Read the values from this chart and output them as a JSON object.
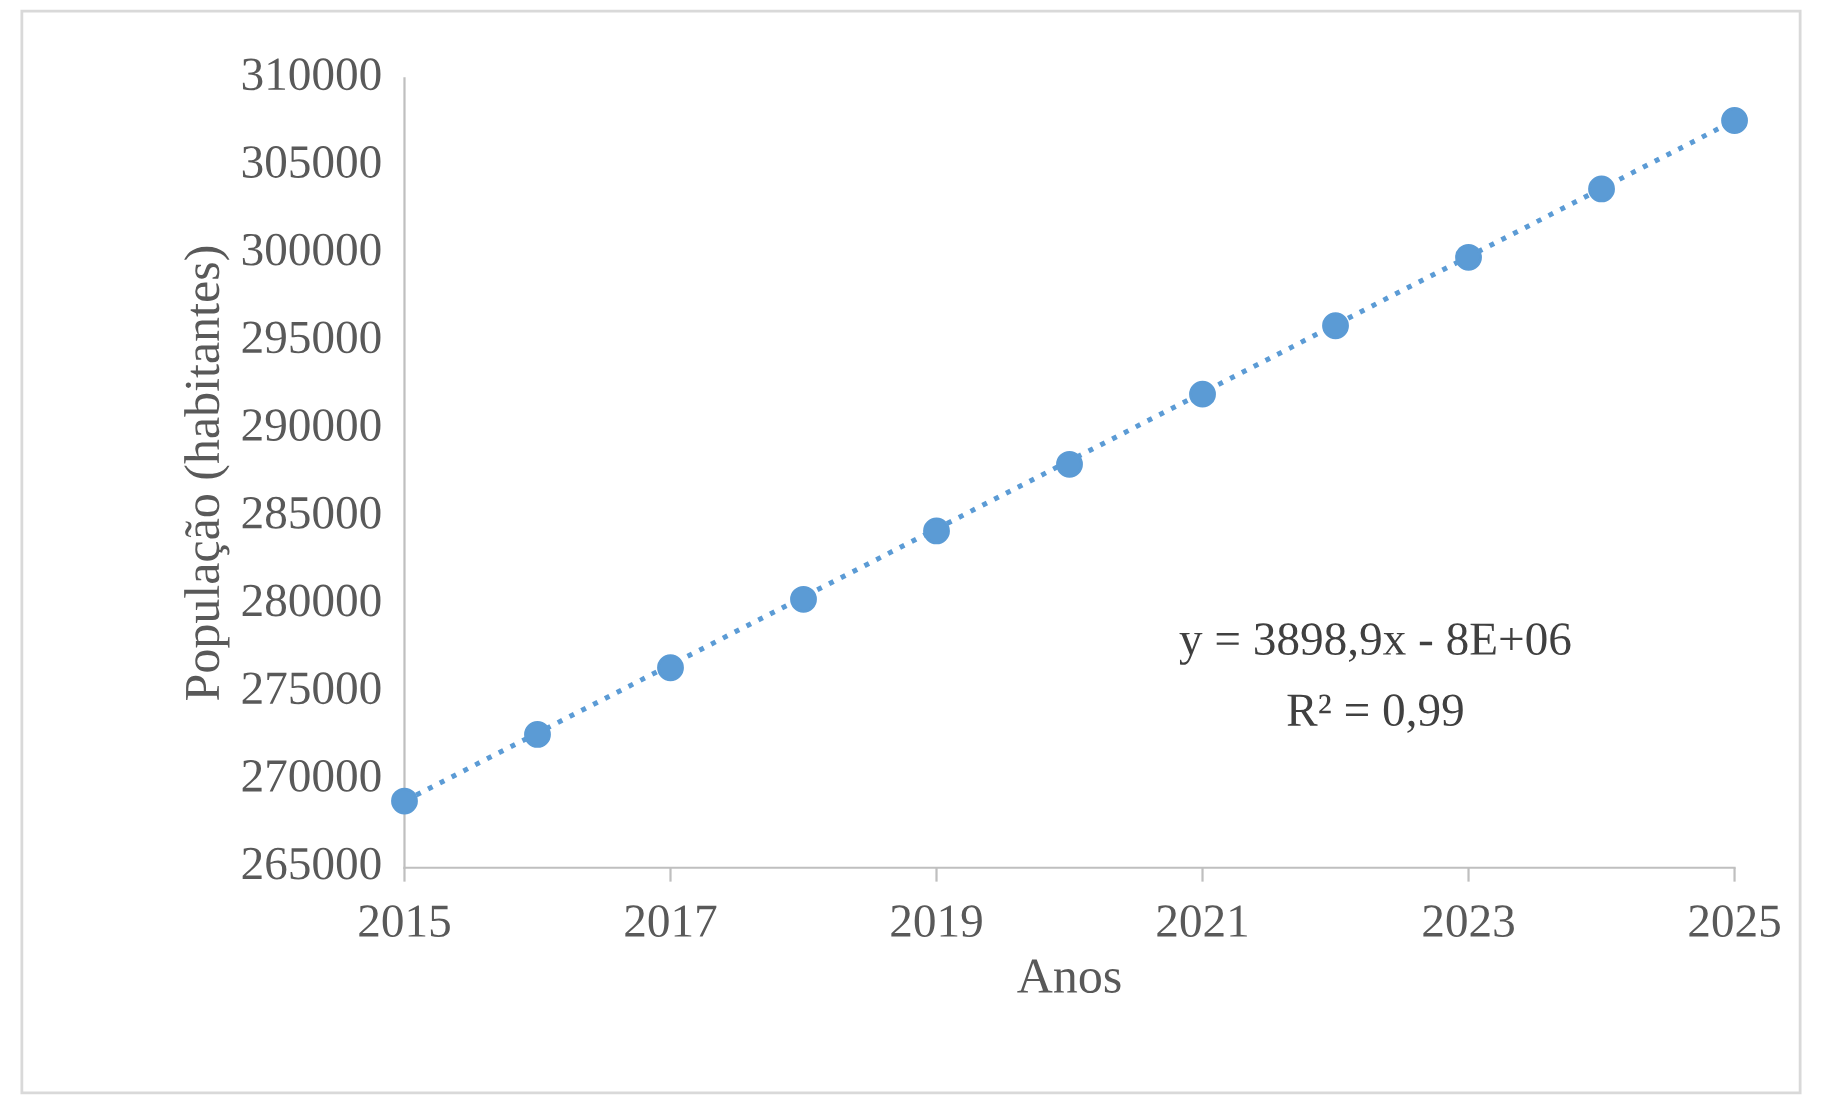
{
  "chart_data": {
    "type": "scatter",
    "xlabel": "Anos",
    "ylabel": "População (habitantes)",
    "x": [
      2015,
      2016,
      2017,
      2018,
      2019,
      2020,
      2021,
      2022,
      2023,
      2024,
      2025
    ],
    "series": [
      {
        "color": "#5b9bd5",
        "marker": "circle",
        "values": [
          268800,
          272600,
          276400,
          280300,
          284200,
          288000,
          292000,
          295900,
          299800,
          303700,
          307600
        ]
      },
      {
        "type": "line",
        "color": "#5b9bd5",
        "line_style": "dotted",
        "marker": "none",
        "x": [
          2015,
          2025
        ],
        "values": [
          268800,
          307600
        ]
      }
    ],
    "annotations": [
      "y = 3898,9x - 8E+06",
      "R² = 0,99"
    ],
    "xlim": [
      2015,
      2025
    ],
    "xticks": [
      2015,
      2017,
      2019,
      2021,
      2023,
      2025
    ],
    "ylim": [
      265000,
      310000
    ],
    "yticks": [
      265000,
      270000,
      275000,
      280000,
      285000,
      290000,
      295000,
      300000,
      305000,
      310000
    ],
    "grid": false,
    "legend": false
  }
}
